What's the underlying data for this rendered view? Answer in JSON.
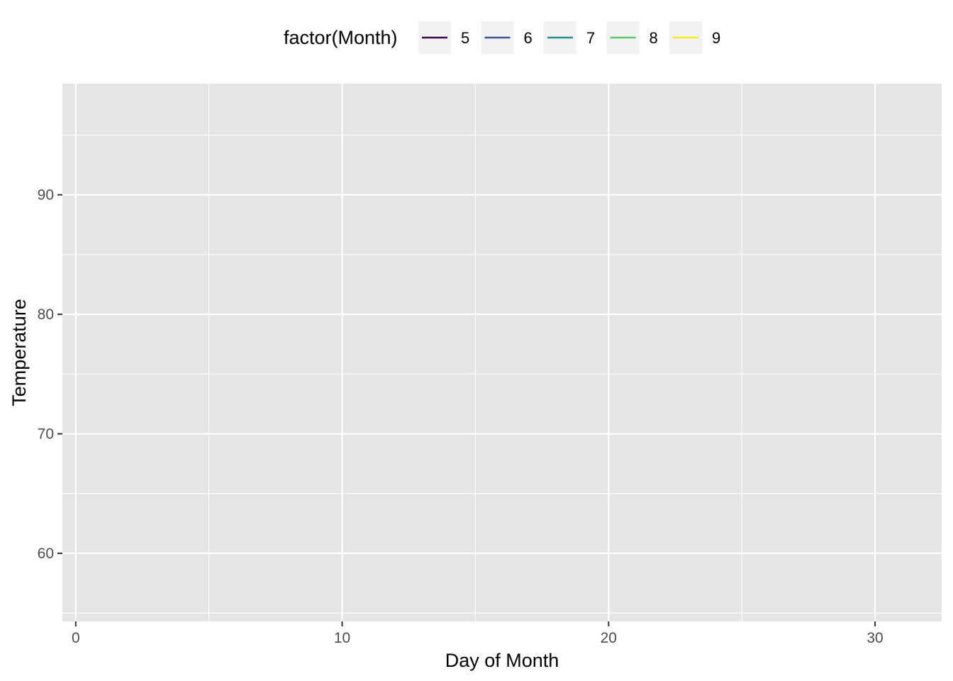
{
  "chart_data": {
    "type": "line",
    "xlabel": "Day of Month",
    "ylabel": "Temperature",
    "xlim": [
      -0.5,
      32.5
    ],
    "ylim": [
      54.3,
      99.3
    ],
    "x_ticks": [
      0,
      10,
      20,
      30
    ],
    "x_tick_labels": [
      "0",
      "10",
      "20",
      "30"
    ],
    "x_minor_ticks": [
      5,
      15,
      25
    ],
    "y_ticks": [
      60,
      70,
      80,
      90
    ],
    "y_tick_labels": [
      "60",
      "70",
      "80",
      "90"
    ],
    "y_minor_ticks": [
      55,
      65,
      75,
      85,
      95
    ],
    "grid": true,
    "legend_position": "top",
    "legend": {
      "title": "factor(Month)",
      "entries": [
        {
          "label": "5",
          "color": "#440154"
        },
        {
          "label": "6",
          "color": "#3b528b"
        },
        {
          "label": "7",
          "color": "#21908c"
        },
        {
          "label": "8",
          "color": "#5dc863"
        },
        {
          "label": "9",
          "color": "#fde725"
        }
      ]
    },
    "series": [
      {
        "name": "5",
        "color": "#440154",
        "x": [],
        "y": []
      },
      {
        "name": "6",
        "color": "#3b528b",
        "x": [],
        "y": []
      },
      {
        "name": "7",
        "color": "#21908c",
        "x": [],
        "y": []
      },
      {
        "name": "8",
        "color": "#5dc863",
        "x": [],
        "y": []
      },
      {
        "name": "9",
        "color": "#fde725",
        "x": [],
        "y": []
      }
    ],
    "colors": {
      "panel_background": "#e5e5e5",
      "grid_line": "#ffffff",
      "legend_key_background": "#f2f2f2",
      "tick_mark": "#333333"
    }
  }
}
